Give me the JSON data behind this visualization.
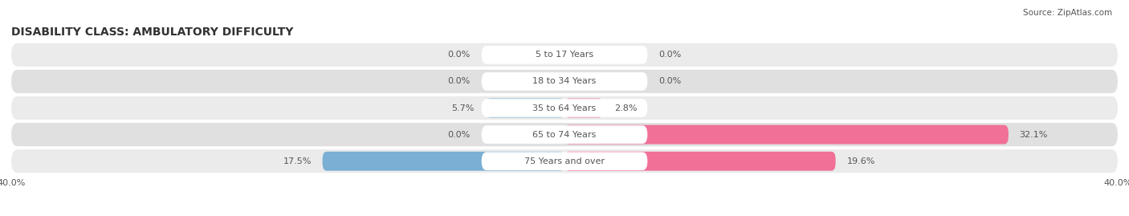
{
  "title": "DISABILITY CLASS: AMBULATORY DIFFICULTY",
  "source": "Source: ZipAtlas.com",
  "categories": [
    "5 to 17 Years",
    "18 to 34 Years",
    "35 to 64 Years",
    "65 to 74 Years",
    "75 Years and over"
  ],
  "male_values": [
    0.0,
    0.0,
    5.7,
    0.0,
    17.5
  ],
  "female_values": [
    0.0,
    0.0,
    2.8,
    32.1,
    19.6
  ],
  "male_color": "#7bafd4",
  "female_color": "#f07098",
  "row_bg_colors": [
    "#ebebeb",
    "#e0e0e0",
    "#ebebeb",
    "#e0e0e0",
    "#ebebeb"
  ],
  "center_label_bg": "#ffffff",
  "axis_max": 40.0,
  "label_color": "#555555",
  "title_color": "#333333",
  "title_fontsize": 10,
  "label_fontsize": 8,
  "category_fontsize": 8,
  "source_fontsize": 7.5
}
